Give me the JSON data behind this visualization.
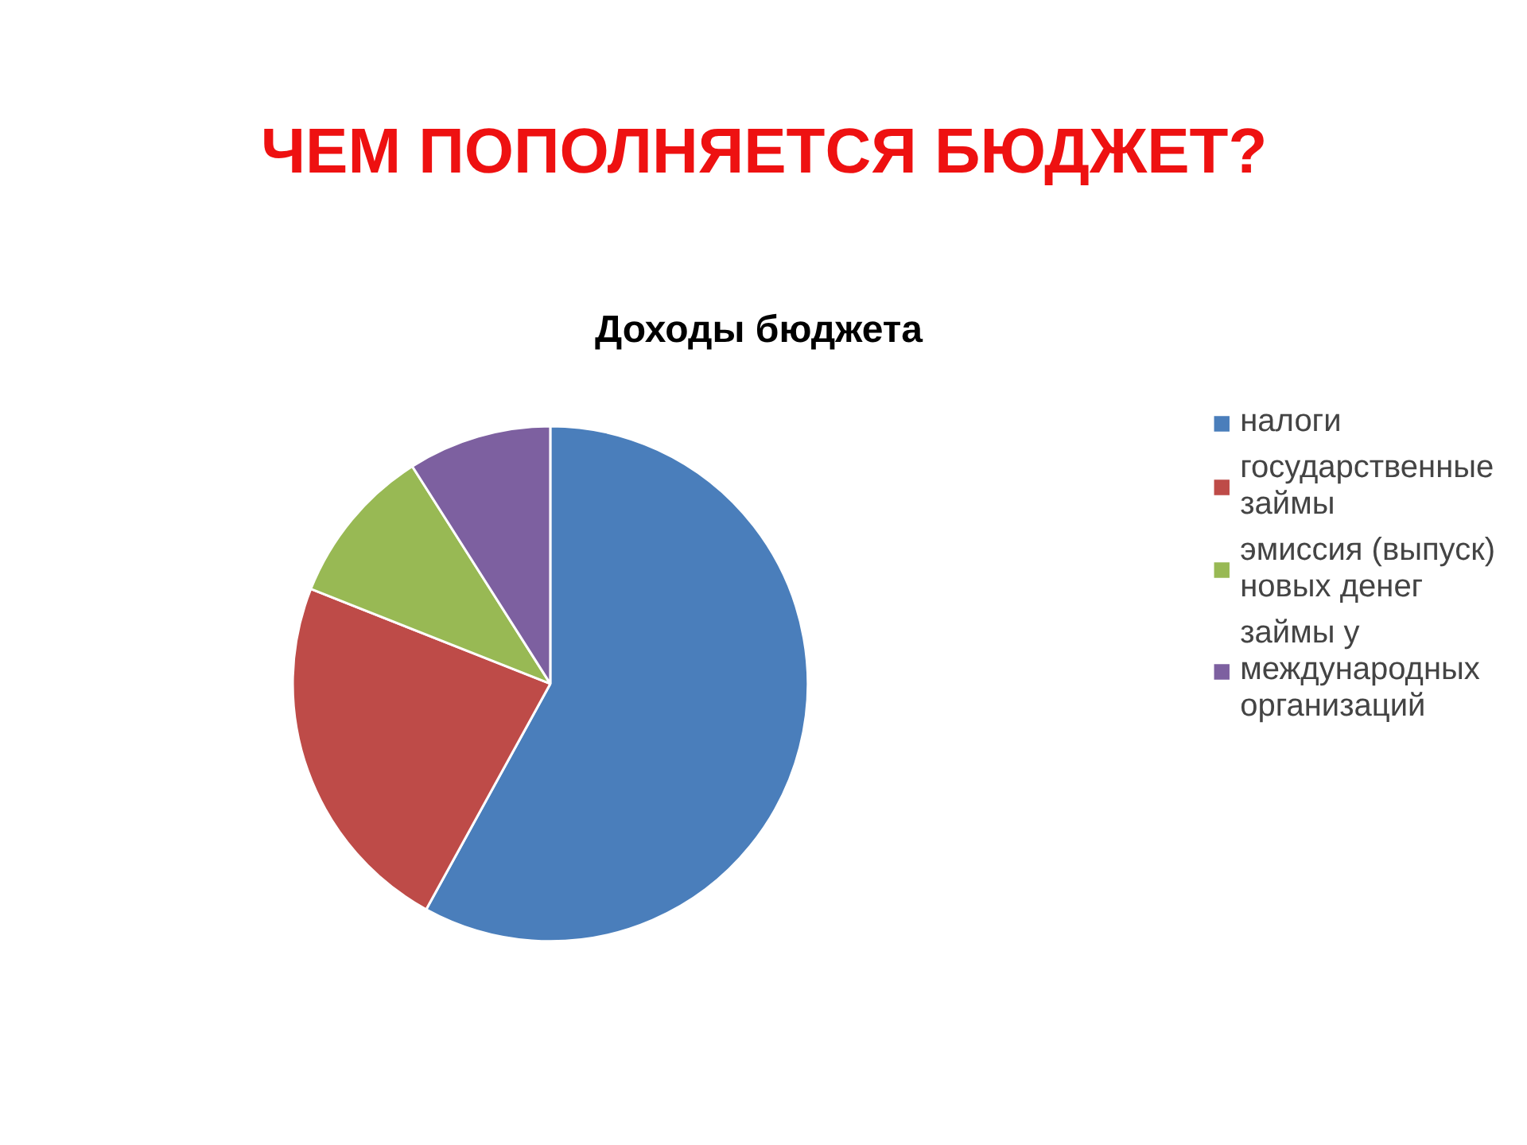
{
  "chart_data": {
    "type": "pie",
    "title": "ЧЕМ ПОПОЛНЯЕТСЯ БЮДЖЕТ?",
    "subtitle": "Доходы  бюджета",
    "categories": [
      "налоги",
      "государственные займы",
      "эмиссия (выпуск) новых денег",
      "займы у международных организаций"
    ],
    "values": [
      58,
      23,
      10,
      9
    ],
    "colors": [
      "#4a7ebb",
      "#be4b48",
      "#98b954",
      "#7d60a0"
    ],
    "legend": "right"
  }
}
